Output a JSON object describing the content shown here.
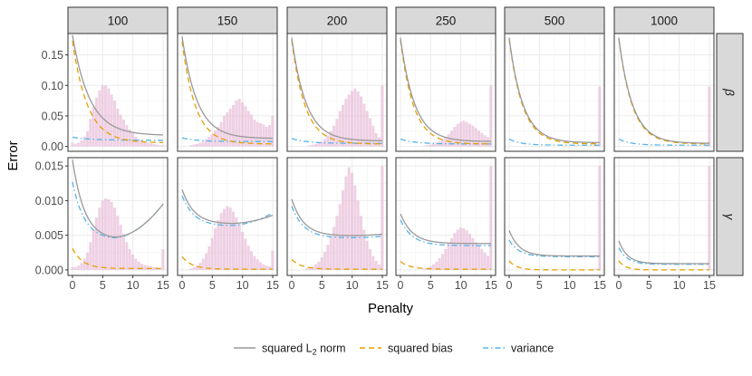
{
  "chart_data": {
    "type": "line",
    "description_free": true,
    "xlabel": "Penalty",
    "ylabel": "Error",
    "columns": [
      "100",
      "150",
      "200",
      "250",
      "500",
      "1000"
    ],
    "rows": [
      {
        "key": "beta",
        "label": "β",
        "ylim": [
          -0.008,
          0.185
        ],
        "yticks": [
          0.0,
          0.05,
          0.1,
          0.15
        ],
        "yticklabels": [
          "0.00",
          "0.05",
          "0.10",
          "0.15"
        ]
      },
      {
        "key": "gamma",
        "label": "γ",
        "ylim": [
          -0.0008,
          0.0162
        ],
        "yticks": [
          0.0,
          0.005,
          0.01,
          0.015
        ],
        "yticklabels": [
          "0.000",
          "0.005",
          "0.010",
          "0.015"
        ]
      }
    ],
    "xlim": [
      -0.75,
      15.75
    ],
    "xticks": [
      0,
      5,
      10,
      15
    ],
    "xticklabels": [
      "0",
      "5",
      "10",
      "15"
    ],
    "legend": {
      "position": "bottom",
      "entries": [
        {
          "key": "l2",
          "label_main": "squared L",
          "label_sub": "2",
          "label_tail": " norm",
          "color": "#999999",
          "dash": "none"
        },
        {
          "key": "bias",
          "label_main": "squared bias",
          "color": "#E69F00",
          "dash": "6,4"
        },
        {
          "key": "variance",
          "label_main": "variance",
          "color": "#56B4E9",
          "dash": "6,3,1.5,3"
        }
      ]
    },
    "histogram_color": "#e7b8d6",
    "series": {
      "beta": [
        {
          "l2": {
            "end": 0.018,
            "A": 0.164,
            "k": 0.35
          },
          "bias": {
            "end": 0.006,
            "A": 0.167,
            "k": 0.4
          },
          "variance": {
            "y0": 0.015,
            "end": 0.01,
            "k": 0.3
          }
        },
        {
          "l2": {
            "end": 0.013,
            "A": 0.167,
            "k": 0.4
          },
          "bias": {
            "end": 0.004,
            "A": 0.168,
            "k": 0.45
          },
          "variance": {
            "y0": 0.014,
            "end": 0.008,
            "k": 0.4
          }
        },
        {
          "l2": {
            "end": 0.009,
            "A": 0.169,
            "k": 0.42
          },
          "bias": {
            "end": 0.004,
            "A": 0.17,
            "k": 0.45
          },
          "variance": {
            "y0": 0.013,
            "end": 0.005,
            "k": 0.4
          }
        },
        {
          "l2": {
            "end": 0.008,
            "A": 0.17,
            "k": 0.43
          },
          "bias": {
            "end": 0.004,
            "A": 0.171,
            "k": 0.46
          },
          "variance": {
            "y0": 0.012,
            "end": 0.004,
            "k": 0.4
          }
        },
        {
          "l2": {
            "end": 0.006,
            "A": 0.172,
            "k": 0.44
          },
          "bias": {
            "end": 0.004,
            "A": 0.172,
            "k": 0.45
          },
          "variance": {
            "y0": 0.012,
            "end": 0.002,
            "k": 0.5
          }
        },
        {
          "l2": {
            "end": 0.005,
            "A": 0.173,
            "k": 0.44
          },
          "bias": {
            "end": 0.004,
            "A": 0.173,
            "k": 0.45
          },
          "variance": {
            "y0": 0.012,
            "end": 0.002,
            "k": 0.5
          }
        }
      ],
      "gamma": [
        {
          "l2": {
            "a": 0.0159,
            "c": 0.0043,
            "k": 0.5,
            "d": 6e-05,
            "x0": 5.7
          },
          "bias": {
            "end": 0.0002,
            "A": 0.0029,
            "k": 0.6
          },
          "variance": {
            "a": 0.0127,
            "c": 0.0043,
            "k": 0.5,
            "d": 6e-05,
            "x0": 5.7
          }
        },
        {
          "l2": {
            "a": 0.0116,
            "c": 0.0066,
            "k": 0.5,
            "d": 2e-05,
            "x0": 7.0
          },
          "bias": {
            "end": 0.0001,
            "A": 0.0018,
            "k": 0.6
          },
          "variance": {
            "a": 0.0107,
            "c": 0.0063,
            "k": 0.5,
            "d": 3e-05,
            "x0": 7.0
          }
        },
        {
          "l2": {
            "a": 0.0102,
            "c": 0.0049,
            "k": 0.5,
            "d": 5e-06,
            "x0": 8.0
          },
          "bias": {
            "end": 0.0001,
            "A": 0.0014,
            "k": 0.6
          },
          "variance": {
            "a": 0.0092,
            "c": 0.0046,
            "k": 0.5,
            "d": 5e-06,
            "x0": 8.0
          }
        },
        {
          "l2": {
            "a": 0.0081,
            "c": 0.0038,
            "k": 0.5,
            "d": 0.0,
            "x0": 8.0
          },
          "bias": {
            "end": 0.0001,
            "A": 0.0011,
            "k": 0.6
          },
          "variance": {
            "a": 0.0072,
            "c": 0.0035,
            "k": 0.5,
            "d": 0.0,
            "x0": 8.0
          }
        },
        {
          "l2": {
            "a": 0.0057,
            "c": 0.002,
            "k": 0.6,
            "d": 0.0,
            "x0": 8.0
          },
          "bias": {
            "end": 0.0,
            "A": 0.0013,
            "k": 0.8
          },
          "variance": {
            "a": 0.0043,
            "c": 0.0019,
            "k": 0.6,
            "d": 0.0,
            "x0": 8.0
          }
        },
        {
          "l2": {
            "a": 0.0042,
            "c": 0.0009,
            "k": 0.7,
            "d": 0.0,
            "x0": 8.0
          },
          "bias": {
            "end": 0.0,
            "A": 0.0013,
            "k": 0.9
          },
          "variance": {
            "a": 0.0032,
            "c": 0.0008,
            "k": 0.7,
            "d": 0.0,
            "x0": 8.0
          }
        }
      ]
    },
    "histograms": {
      "beta": [
        [
          0.006,
          0.004,
          0.006,
          0.01,
          0.016,
          0.025,
          0.045,
          0.065,
          0.08,
          0.092,
          0.1,
          0.1,
          0.095,
          0.085,
          0.075,
          0.062,
          0.052,
          0.044,
          0.035,
          0.028,
          0.022,
          0.016,
          0.012,
          0.01,
          0.008,
          0.006,
          0.005,
          0.004,
          0.003,
          0.002,
          0.002
        ],
        [
          0,
          0,
          0,
          0.002,
          0.003,
          0.004,
          0.006,
          0.008,
          0.012,
          0.016,
          0.02,
          0.026,
          0.032,
          0.04,
          0.05,
          0.056,
          0.062,
          0.068,
          0.075,
          0.078,
          0.072,
          0.066,
          0.058,
          0.052,
          0.044,
          0.04,
          0.038,
          0.036,
          0.032,
          0.035,
          0.05
        ],
        [
          0,
          0,
          0,
          0,
          0,
          0,
          0.002,
          0.003,
          0.004,
          0.006,
          0.008,
          0.012,
          0.018,
          0.025,
          0.034,
          0.045,
          0.058,
          0.068,
          0.078,
          0.085,
          0.091,
          0.095,
          0.09,
          0.082,
          0.07,
          0.058,
          0.046,
          0.034,
          0.022,
          0.015,
          0.1
        ],
        [
          0,
          0,
          0,
          0,
          0,
          0,
          0,
          0,
          0.001,
          0.002,
          0.003,
          0.004,
          0.006,
          0.008,
          0.011,
          0.015,
          0.02,
          0.026,
          0.032,
          0.037,
          0.04,
          0.042,
          0.04,
          0.037,
          0.034,
          0.03,
          0.026,
          0.022,
          0.018,
          0.015,
          0.1
        ],
        [
          0,
          0,
          0,
          0,
          0,
          0,
          0,
          0,
          0,
          0,
          0,
          0,
          0,
          0,
          0,
          0,
          0,
          0,
          0,
          0,
          0,
          0,
          0,
          0,
          0,
          0,
          0,
          0,
          0.001,
          0.002,
          0.098
        ],
        [
          0,
          0,
          0,
          0,
          0,
          0,
          0,
          0,
          0,
          0,
          0,
          0,
          0,
          0,
          0,
          0,
          0,
          0,
          0,
          0,
          0,
          0,
          0,
          0,
          0,
          0,
          0,
          0,
          0,
          0.001,
          0.098
        ]
      ],
      "gamma": [
        [
          0.0004,
          0.0004,
          0.0006,
          0.001,
          0.0016,
          0.0025,
          0.004,
          0.0058,
          0.0075,
          0.009,
          0.01,
          0.0103,
          0.0102,
          0.0098,
          0.009,
          0.0078,
          0.0065,
          0.0052,
          0.004,
          0.003,
          0.0022,
          0.0016,
          0.0012,
          0.0009,
          0.0007,
          0.0006,
          0.0005,
          0.0004,
          0.0004,
          0.0003,
          0.003
        ],
        [
          0,
          0,
          0,
          0.0002,
          0.0004,
          0.0006,
          0.001,
          0.0016,
          0.0024,
          0.0034,
          0.0046,
          0.006,
          0.0072,
          0.0082,
          0.0088,
          0.0092,
          0.009,
          0.0084,
          0.0076,
          0.0066,
          0.0055,
          0.0045,
          0.0035,
          0.0027,
          0.002,
          0.0015,
          0.0011,
          0.0008,
          0.0006,
          0.0005,
          0.0028
        ],
        [
          0,
          0,
          0,
          0,
          0,
          0.0002,
          0.0003,
          0.0005,
          0.0008,
          0.0012,
          0.0018,
          0.0026,
          0.0036,
          0.0048,
          0.0062,
          0.0078,
          0.0095,
          0.0115,
          0.0135,
          0.0148,
          0.014,
          0.0122,
          0.01,
          0.0078,
          0.0058,
          0.0042,
          0.003,
          0.002,
          0.0013,
          0.0008,
          0.015
        ],
        [
          0,
          0,
          0,
          0,
          0,
          0,
          0,
          0,
          0.0002,
          0.0003,
          0.0005,
          0.0008,
          0.0012,
          0.0017,
          0.0023,
          0.003,
          0.0038,
          0.0046,
          0.0053,
          0.0058,
          0.0061,
          0.006,
          0.0057,
          0.0052,
          0.0046,
          0.004,
          0.0035,
          0.003,
          0.0025,
          0.002,
          0.015
        ],
        [
          0,
          0,
          0,
          0,
          0,
          0,
          0,
          0,
          0,
          0,
          0,
          0,
          0,
          0,
          0,
          0,
          0,
          0,
          0,
          0,
          0,
          0,
          0,
          0,
          0,
          0,
          0,
          0,
          0,
          0.0002,
          0.015
        ],
        [
          0,
          0,
          0,
          0,
          0,
          0,
          0,
          0,
          0,
          0,
          0,
          0,
          0,
          0,
          0,
          0,
          0,
          0,
          0,
          0,
          0,
          0,
          0,
          0,
          0,
          0,
          0,
          0,
          0,
          0.0001,
          0.015
        ]
      ]
    }
  }
}
